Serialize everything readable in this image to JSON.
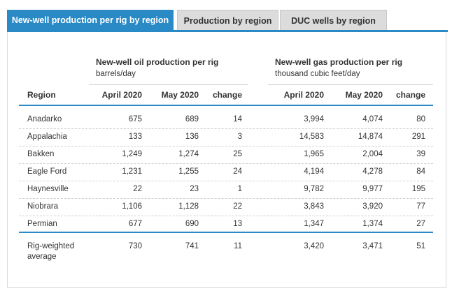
{
  "tabs": [
    {
      "label": "New-well production per rig by region",
      "active": true
    },
    {
      "label": "Production by region",
      "active": false
    },
    {
      "label": "DUC wells by region",
      "active": false
    }
  ],
  "colors": {
    "accent": "#2a8ac6",
    "tab_inactive": "#dcdcdc"
  },
  "table": {
    "oil_group": {
      "title": "New-well oil production per rig",
      "unit": "barrels/day"
    },
    "gas_group": {
      "title": "New-well gas production per rig",
      "unit": "thousand cubic feet/day"
    },
    "headers": {
      "region": "Region",
      "oil_apr": "April 2020",
      "oil_may": "May 2020",
      "oil_change": "change",
      "gas_apr": "April 2020",
      "gas_may": "May 2020",
      "gas_change": "change"
    },
    "rows": [
      {
        "region": "Anadarko",
        "oil_apr": "675",
        "oil_may": "689",
        "oil_change": "14",
        "gas_apr": "3,994",
        "gas_may": "4,074",
        "gas_change": "80"
      },
      {
        "region": "Appalachia",
        "oil_apr": "133",
        "oil_may": "136",
        "oil_change": "3",
        "gas_apr": "14,583",
        "gas_may": "14,874",
        "gas_change": "291"
      },
      {
        "region": "Bakken",
        "oil_apr": "1,249",
        "oil_may": "1,274",
        "oil_change": "25",
        "gas_apr": "1,965",
        "gas_may": "2,004",
        "gas_change": "39"
      },
      {
        "region": "Eagle Ford",
        "oil_apr": "1,231",
        "oil_may": "1,255",
        "oil_change": "24",
        "gas_apr": "4,194",
        "gas_may": "4,278",
        "gas_change": "84"
      },
      {
        "region": "Haynesville",
        "oil_apr": "22",
        "oil_may": "23",
        "oil_change": "1",
        "gas_apr": "9,782",
        "gas_may": "9,977",
        "gas_change": "195"
      },
      {
        "region": "Niobrara",
        "oil_apr": "1,106",
        "oil_may": "1,128",
        "oil_change": "22",
        "gas_apr": "3,843",
        "gas_may": "3,920",
        "gas_change": "77"
      },
      {
        "region": "Permian",
        "oil_apr": "677",
        "oil_may": "690",
        "oil_change": "13",
        "gas_apr": "1,347",
        "gas_may": "1,374",
        "gas_change": "27"
      }
    ],
    "total": {
      "region_line1": "Rig-weighted",
      "region_line2": "average",
      "oil_apr": "730",
      "oil_may": "741",
      "oil_change": "11",
      "gas_apr": "3,420",
      "gas_may": "3,471",
      "gas_change": "51"
    }
  }
}
